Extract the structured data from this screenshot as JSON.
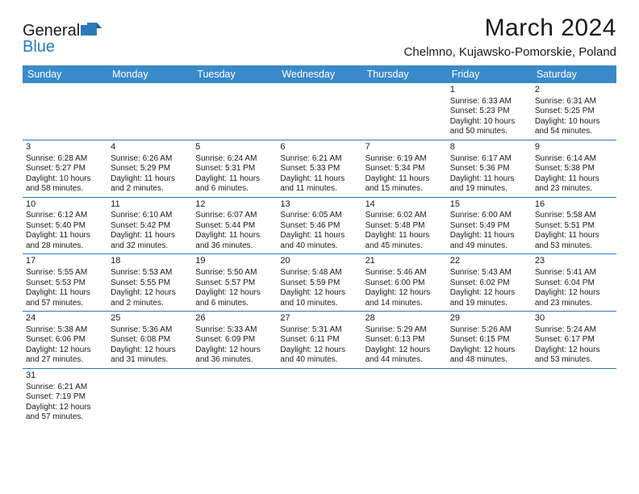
{
  "logo": {
    "general": "General",
    "blue": "Blue"
  },
  "title": "March 2024",
  "location": "Chelmno, Kujawsko-Pomorskie, Poland",
  "colors": {
    "header_bg": "#3a8ac9",
    "border": "#2b7ab8",
    "text": "#1a1a1a",
    "white": "#ffffff"
  },
  "day_names": [
    "Sunday",
    "Monday",
    "Tuesday",
    "Wednesday",
    "Thursday",
    "Friday",
    "Saturday"
  ],
  "weeks": [
    [
      null,
      null,
      null,
      null,
      null,
      {
        "n": "1",
        "sr": "Sunrise: 6:33 AM",
        "ss": "Sunset: 5:23 PM",
        "d1": "Daylight: 10 hours",
        "d2": "and 50 minutes."
      },
      {
        "n": "2",
        "sr": "Sunrise: 6:31 AM",
        "ss": "Sunset: 5:25 PM",
        "d1": "Daylight: 10 hours",
        "d2": "and 54 minutes."
      }
    ],
    [
      {
        "n": "3",
        "sr": "Sunrise: 6:28 AM",
        "ss": "Sunset: 5:27 PM",
        "d1": "Daylight: 10 hours",
        "d2": "and 58 minutes."
      },
      {
        "n": "4",
        "sr": "Sunrise: 6:26 AM",
        "ss": "Sunset: 5:29 PM",
        "d1": "Daylight: 11 hours",
        "d2": "and 2 minutes."
      },
      {
        "n": "5",
        "sr": "Sunrise: 6:24 AM",
        "ss": "Sunset: 5:31 PM",
        "d1": "Daylight: 11 hours",
        "d2": "and 6 minutes."
      },
      {
        "n": "6",
        "sr": "Sunrise: 6:21 AM",
        "ss": "Sunset: 5:33 PM",
        "d1": "Daylight: 11 hours",
        "d2": "and 11 minutes."
      },
      {
        "n": "7",
        "sr": "Sunrise: 6:19 AM",
        "ss": "Sunset: 5:34 PM",
        "d1": "Daylight: 11 hours",
        "d2": "and 15 minutes."
      },
      {
        "n": "8",
        "sr": "Sunrise: 6:17 AM",
        "ss": "Sunset: 5:36 PM",
        "d1": "Daylight: 11 hours",
        "d2": "and 19 minutes."
      },
      {
        "n": "9",
        "sr": "Sunrise: 6:14 AM",
        "ss": "Sunset: 5:38 PM",
        "d1": "Daylight: 11 hours",
        "d2": "and 23 minutes."
      }
    ],
    [
      {
        "n": "10",
        "sr": "Sunrise: 6:12 AM",
        "ss": "Sunset: 5:40 PM",
        "d1": "Daylight: 11 hours",
        "d2": "and 28 minutes."
      },
      {
        "n": "11",
        "sr": "Sunrise: 6:10 AM",
        "ss": "Sunset: 5:42 PM",
        "d1": "Daylight: 11 hours",
        "d2": "and 32 minutes."
      },
      {
        "n": "12",
        "sr": "Sunrise: 6:07 AM",
        "ss": "Sunset: 5:44 PM",
        "d1": "Daylight: 11 hours",
        "d2": "and 36 minutes."
      },
      {
        "n": "13",
        "sr": "Sunrise: 6:05 AM",
        "ss": "Sunset: 5:46 PM",
        "d1": "Daylight: 11 hours",
        "d2": "and 40 minutes."
      },
      {
        "n": "14",
        "sr": "Sunrise: 6:02 AM",
        "ss": "Sunset: 5:48 PM",
        "d1": "Daylight: 11 hours",
        "d2": "and 45 minutes."
      },
      {
        "n": "15",
        "sr": "Sunrise: 6:00 AM",
        "ss": "Sunset: 5:49 PM",
        "d1": "Daylight: 11 hours",
        "d2": "and 49 minutes."
      },
      {
        "n": "16",
        "sr": "Sunrise: 5:58 AM",
        "ss": "Sunset: 5:51 PM",
        "d1": "Daylight: 11 hours",
        "d2": "and 53 minutes."
      }
    ],
    [
      {
        "n": "17",
        "sr": "Sunrise: 5:55 AM",
        "ss": "Sunset: 5:53 PM",
        "d1": "Daylight: 11 hours",
        "d2": "and 57 minutes."
      },
      {
        "n": "18",
        "sr": "Sunrise: 5:53 AM",
        "ss": "Sunset: 5:55 PM",
        "d1": "Daylight: 12 hours",
        "d2": "and 2 minutes."
      },
      {
        "n": "19",
        "sr": "Sunrise: 5:50 AM",
        "ss": "Sunset: 5:57 PM",
        "d1": "Daylight: 12 hours",
        "d2": "and 6 minutes."
      },
      {
        "n": "20",
        "sr": "Sunrise: 5:48 AM",
        "ss": "Sunset: 5:59 PM",
        "d1": "Daylight: 12 hours",
        "d2": "and 10 minutes."
      },
      {
        "n": "21",
        "sr": "Sunrise: 5:46 AM",
        "ss": "Sunset: 6:00 PM",
        "d1": "Daylight: 12 hours",
        "d2": "and 14 minutes."
      },
      {
        "n": "22",
        "sr": "Sunrise: 5:43 AM",
        "ss": "Sunset: 6:02 PM",
        "d1": "Daylight: 12 hours",
        "d2": "and 19 minutes."
      },
      {
        "n": "23",
        "sr": "Sunrise: 5:41 AM",
        "ss": "Sunset: 6:04 PM",
        "d1": "Daylight: 12 hours",
        "d2": "and 23 minutes."
      }
    ],
    [
      {
        "n": "24",
        "sr": "Sunrise: 5:38 AM",
        "ss": "Sunset: 6:06 PM",
        "d1": "Daylight: 12 hours",
        "d2": "and 27 minutes."
      },
      {
        "n": "25",
        "sr": "Sunrise: 5:36 AM",
        "ss": "Sunset: 6:08 PM",
        "d1": "Daylight: 12 hours",
        "d2": "and 31 minutes."
      },
      {
        "n": "26",
        "sr": "Sunrise: 5:33 AM",
        "ss": "Sunset: 6:09 PM",
        "d1": "Daylight: 12 hours",
        "d2": "and 36 minutes."
      },
      {
        "n": "27",
        "sr": "Sunrise: 5:31 AM",
        "ss": "Sunset: 6:11 PM",
        "d1": "Daylight: 12 hours",
        "d2": "and 40 minutes."
      },
      {
        "n": "28",
        "sr": "Sunrise: 5:29 AM",
        "ss": "Sunset: 6:13 PM",
        "d1": "Daylight: 12 hours",
        "d2": "and 44 minutes."
      },
      {
        "n": "29",
        "sr": "Sunrise: 5:26 AM",
        "ss": "Sunset: 6:15 PM",
        "d1": "Daylight: 12 hours",
        "d2": "and 48 minutes."
      },
      {
        "n": "30",
        "sr": "Sunrise: 5:24 AM",
        "ss": "Sunset: 6:17 PM",
        "d1": "Daylight: 12 hours",
        "d2": "and 53 minutes."
      }
    ],
    [
      {
        "n": "31",
        "sr": "Sunrise: 6:21 AM",
        "ss": "Sunset: 7:19 PM",
        "d1": "Daylight: 12 hours",
        "d2": "and 57 minutes."
      },
      null,
      null,
      null,
      null,
      null,
      null
    ]
  ]
}
